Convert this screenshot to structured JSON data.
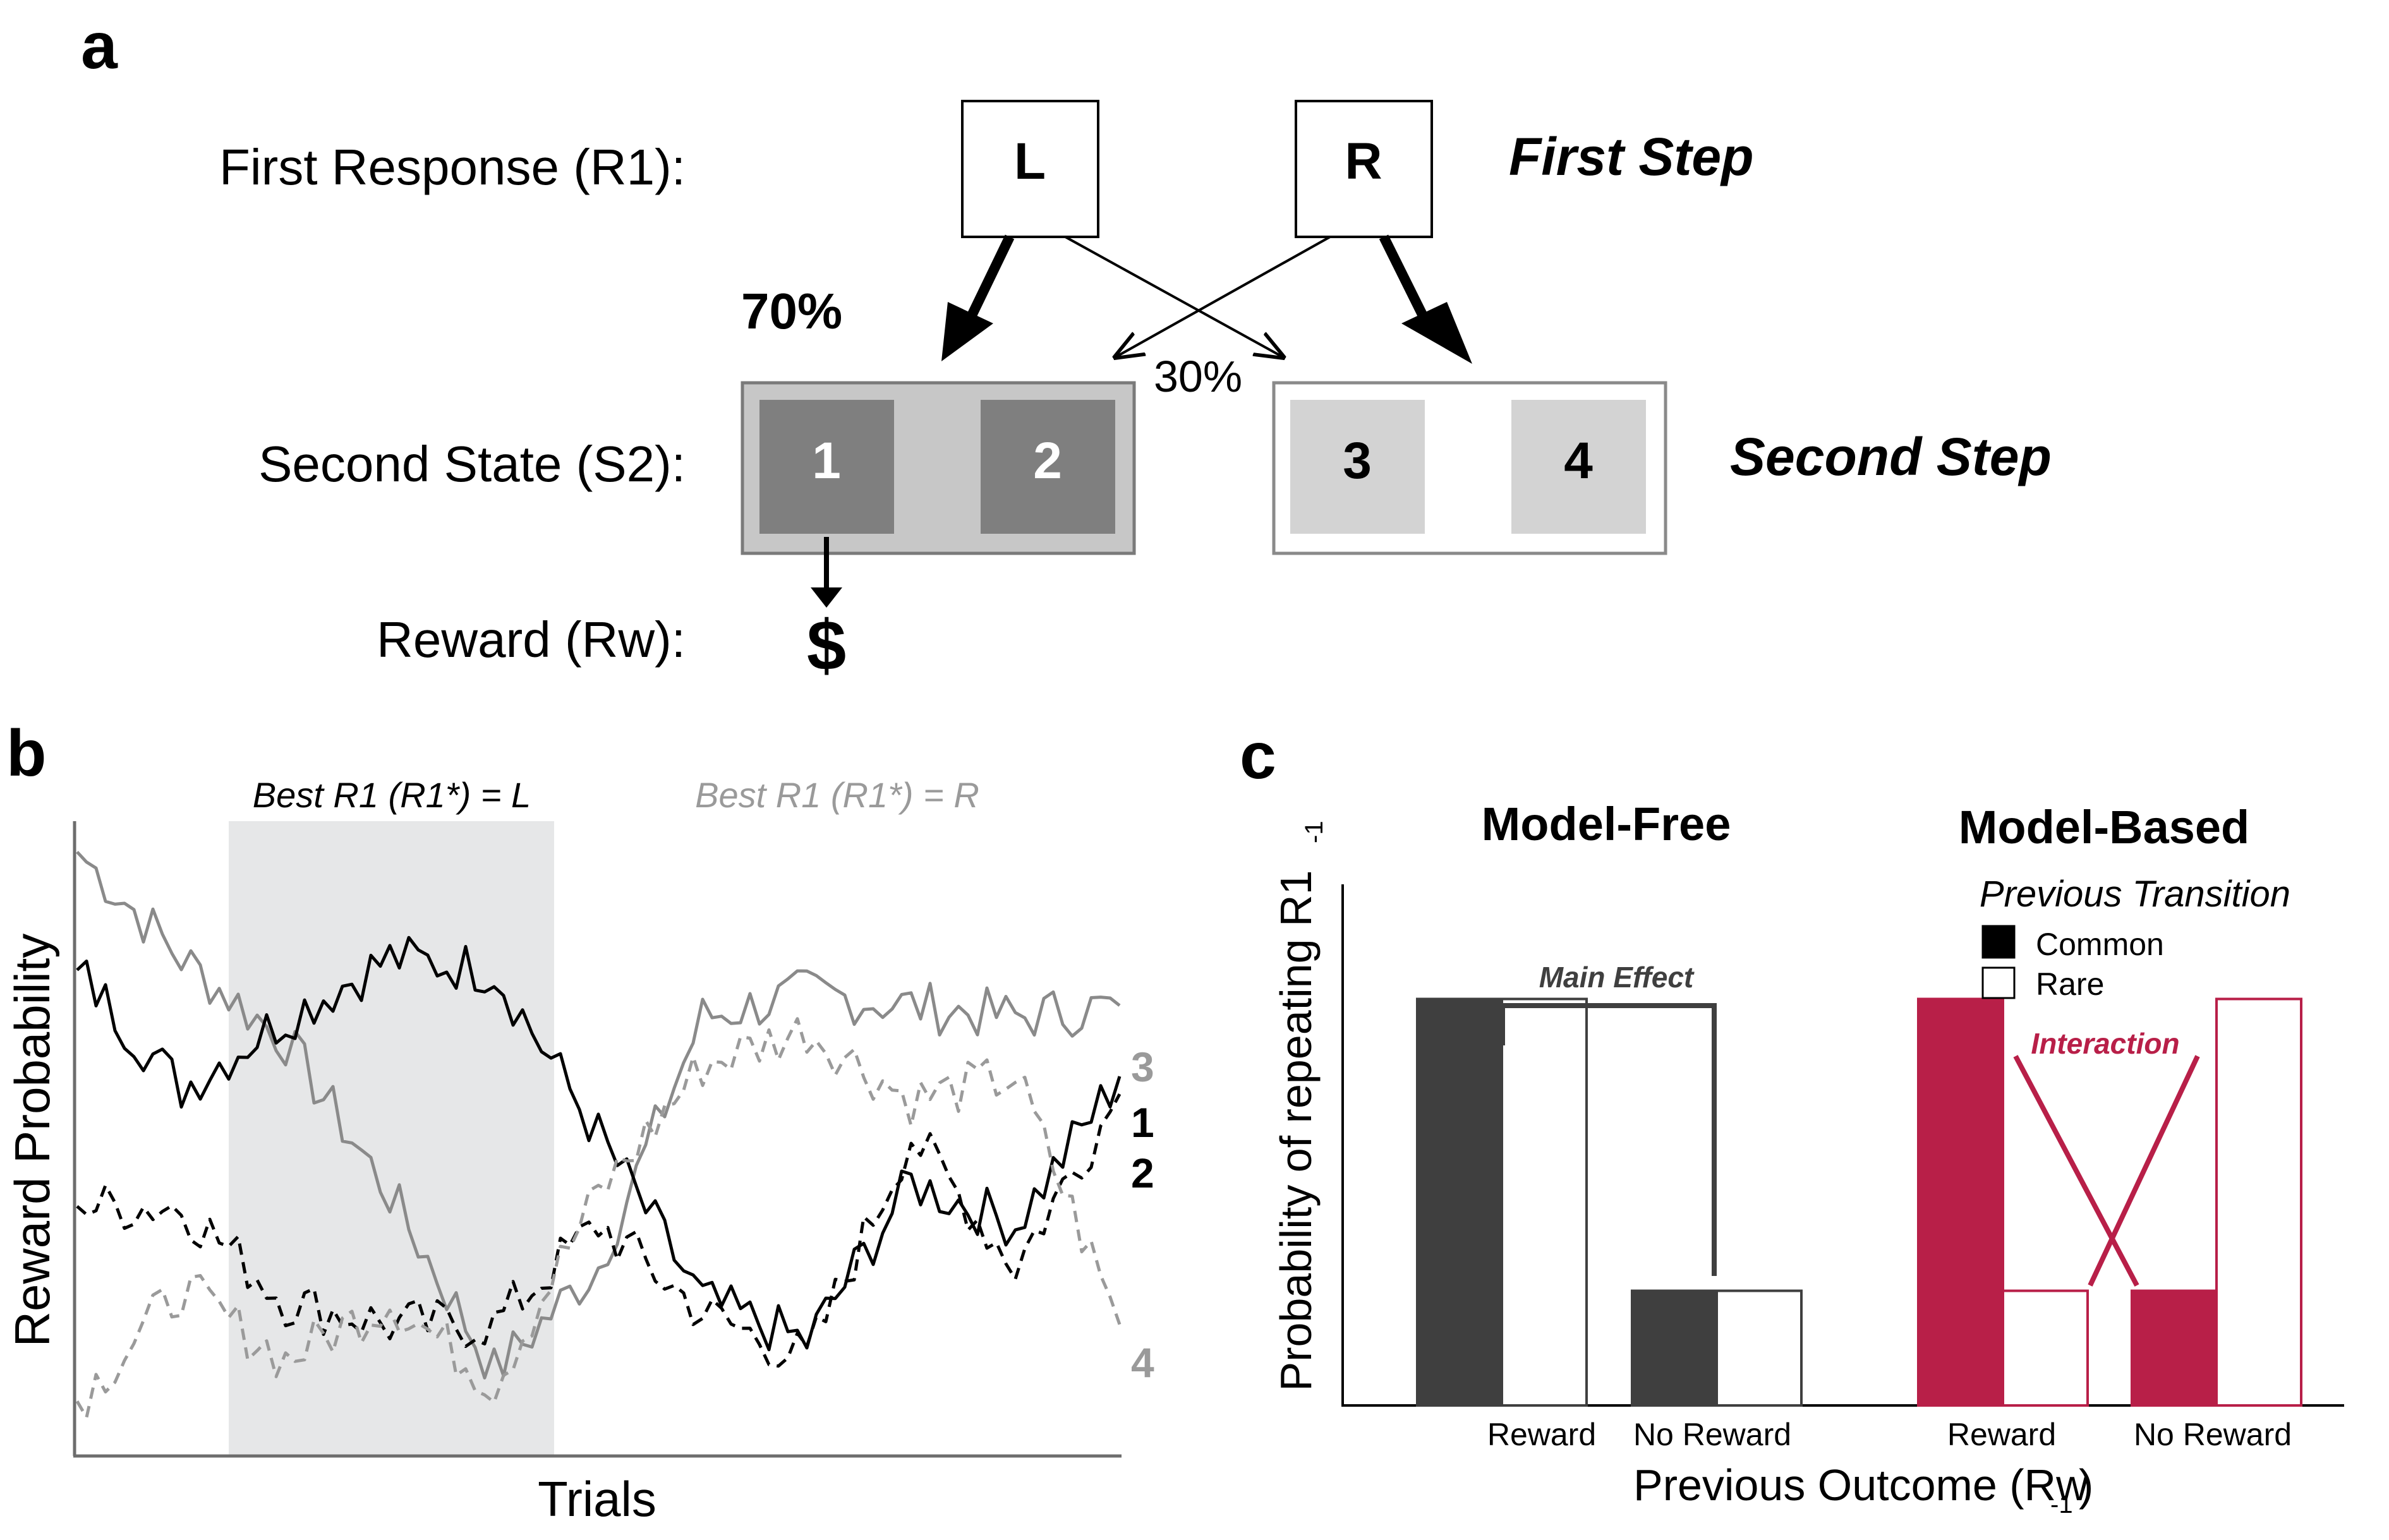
{
  "panel_a": {
    "panel_label": "a",
    "row_r1": "First Response (R1):",
    "row_s2": "Second State (S2):",
    "row_rw": "Reward (Rw):",
    "box_left": "L",
    "box_right": "R",
    "first_step": "First Step",
    "second_step": "Second Step",
    "pct_common": "70%",
    "pct_rare": "30%",
    "state_left": [
      "1",
      "2"
    ],
    "state_right": [
      "3",
      "4"
    ],
    "reward_symbol": "$"
  },
  "panel_b": {
    "panel_label": "b",
    "ylabel": "Reward Probability",
    "xlabel": "Trials",
    "best_left": "Best R1 (R1*) = L",
    "best_right": "Best R1 (R1*) = R",
    "line_labels": [
      "3",
      "1",
      "2",
      "4"
    ]
  },
  "panel_c": {
    "panel_label": "c",
    "title_mf": "Model-Free",
    "title_mb": "Model-Based",
    "ylabel_main": "Probability of repeating R1",
    "ylabel_sub": "-1",
    "xlabel_main": "Previous Outcome (Rw",
    "xlabel_sub": "-1",
    "xlabel_close": ")",
    "legend_title": "Previous Transition",
    "legend_common": "Common",
    "legend_rare": "Rare",
    "main_effect": "Main Effect",
    "interaction": "Interaction",
    "tick_reward": "Reward",
    "tick_noreward": "No Reward",
    "colors": {
      "mf_fill": "#3f3f3f",
      "mb_fill": "#b81f48",
      "grey_line": "#8a8a8a"
    }
  },
  "chart_data": [
    {
      "type": "bar",
      "title": "Model-Free",
      "categories": [
        "Reward",
        "No Reward"
      ],
      "series": [
        {
          "name": "Common",
          "values": [
            0.78,
            0.22
          ]
        },
        {
          "name": "Rare",
          "values": [
            0.78,
            0.22
          ]
        }
      ],
      "xlabel": "Previous Outcome (Rw-1)",
      "ylabel": "Probability of repeating R1-1",
      "ylim": [
        0,
        1
      ]
    },
    {
      "type": "bar",
      "title": "Model-Based",
      "categories": [
        "Reward",
        "No Reward"
      ],
      "series": [
        {
          "name": "Common",
          "values": [
            0.78,
            0.22
          ]
        },
        {
          "name": "Rare",
          "values": [
            0.22,
            0.78
          ]
        }
      ],
      "xlabel": "Previous Outcome (Rw-1)",
      "ylabel": "Probability of repeating R1-1",
      "ylim": [
        0,
        1
      ]
    },
    {
      "type": "line",
      "xlabel": "Trials",
      "ylabel": "Reward Probability",
      "x": [
        0,
        10,
        20,
        30,
        40,
        50,
        60,
        70,
        80,
        90,
        100
      ],
      "series": [
        {
          "name": "3",
          "values": [
            0.98,
            0.8,
            0.66,
            0.4,
            0.1,
            0.28,
            0.7,
            0.74,
            0.72,
            0.7,
            0.72
          ]
        },
        {
          "name": "1",
          "values": [
            0.78,
            0.58,
            0.7,
            0.8,
            0.78,
            0.5,
            0.22,
            0.15,
            0.42,
            0.35,
            0.6
          ]
        },
        {
          "name": "2",
          "values": [
            0.38,
            0.38,
            0.22,
            0.18,
            0.18,
            0.35,
            0.2,
            0.12,
            0.5,
            0.28,
            0.57
          ]
        },
        {
          "name": "4",
          "values": [
            0.05,
            0.24,
            0.12,
            0.22,
            0.08,
            0.4,
            0.62,
            0.68,
            0.56,
            0.6,
            0.18
          ]
        }
      ]
    }
  ]
}
